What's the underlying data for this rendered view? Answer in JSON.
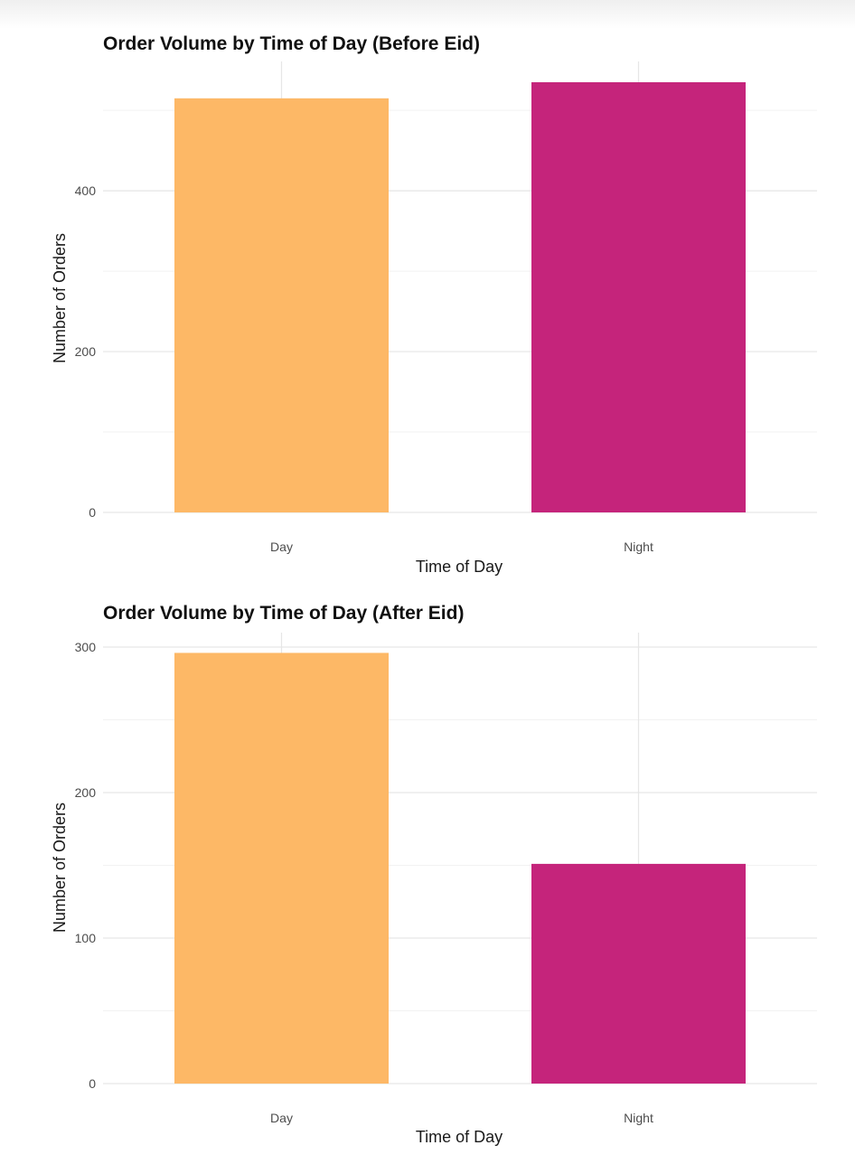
{
  "chart_data": [
    {
      "type": "bar",
      "title": "Order Volume by Time of Day (Before Eid)",
      "xlabel": "Time of Day",
      "ylabel": "Number of Orders",
      "categories": [
        "Day",
        "Night"
      ],
      "values": [
        515,
        535
      ],
      "colors": [
        "#FDB866",
        "#C5247B"
      ],
      "ylim": [
        0,
        535
      ],
      "yticks": [
        0,
        200,
        400
      ],
      "grid": true,
      "legend": "none"
    },
    {
      "type": "bar",
      "title": "Order Volume by Time of Day (After Eid)",
      "xlabel": "Time of Day",
      "ylabel": "Number of Orders",
      "categories": [
        "Day",
        "Night"
      ],
      "values": [
        296,
        151
      ],
      "colors": [
        "#FDB866",
        "#C5247B"
      ],
      "ylim": [
        0,
        300
      ],
      "yticks": [
        0,
        100,
        200,
        300
      ],
      "grid": true,
      "legend": "none"
    }
  ]
}
